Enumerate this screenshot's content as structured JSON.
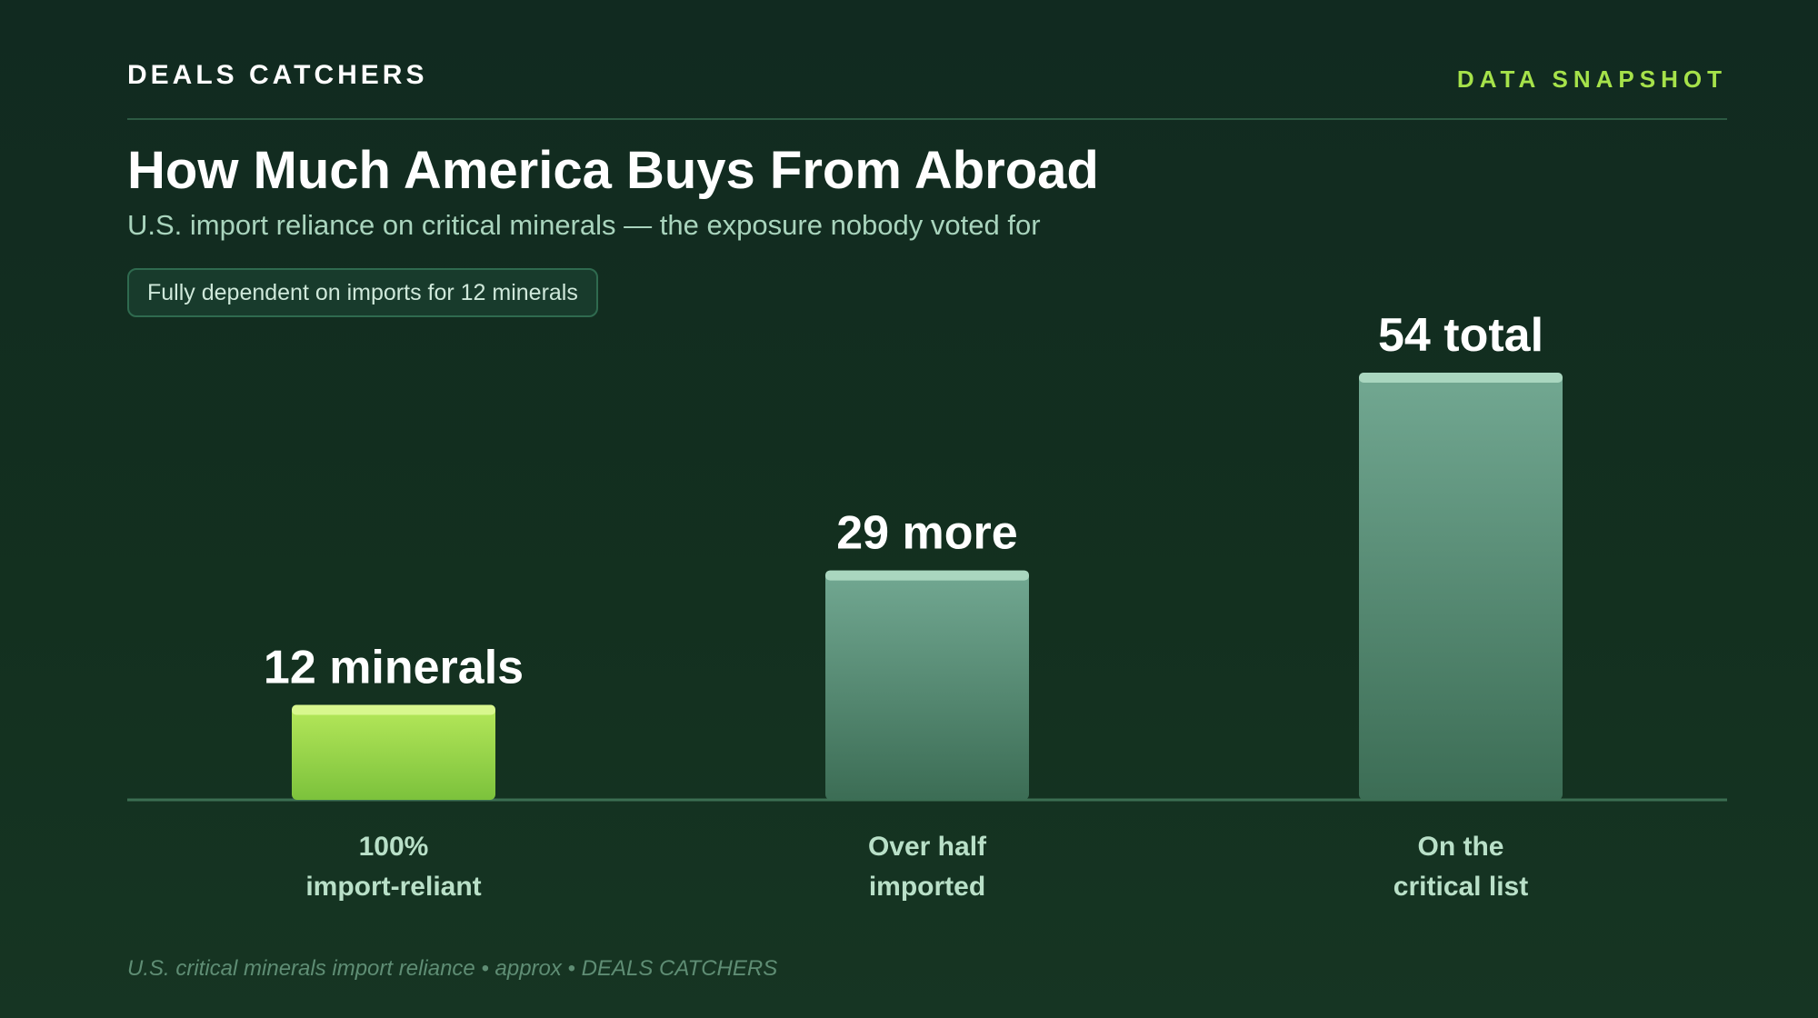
{
  "header": {
    "brand": "DEALS CATCHERS",
    "tag": "DATA SNAPSHOT"
  },
  "title": "How Much America Buys From Abroad",
  "subtitle": "U.S. import reliance on critical minerals — the exposure nobody voted for",
  "callout": "Fully dependent on imports for 12 minerals",
  "footer": "U.S. critical minerals import reliance • approx • DEALS CATCHERS",
  "colors": {
    "highlight_bar": "#9fd946",
    "base_bar": "#5a977c",
    "accent": "#a6e24a"
  },
  "chart_data": {
    "type": "bar",
    "categories": [
      [
        "100%",
        "import-reliant"
      ],
      [
        "Over half",
        "imported"
      ],
      [
        "On the",
        "critical list"
      ]
    ],
    "values": [
      12,
      29,
      54
    ],
    "data_labels": [
      "12 minerals",
      "29 more",
      "54 total"
    ],
    "highlight_index": 0,
    "ylim": [
      0,
      54
    ],
    "grid": false,
    "legend": "none"
  }
}
